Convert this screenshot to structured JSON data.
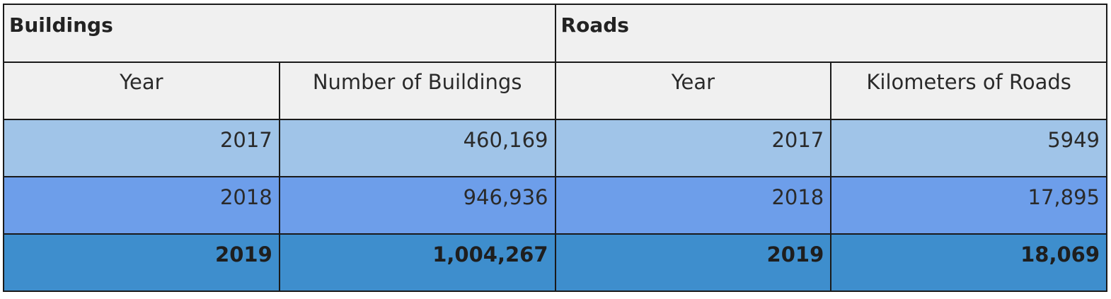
{
  "groups": {
    "buildings": "Buildings",
    "roads": "Roads"
  },
  "columns": {
    "buildings_year": "Year",
    "buildings_count": "Number of Buildings",
    "roads_year": "Year",
    "roads_km": "Kilometers of Roads"
  },
  "rows": [
    {
      "b_year": "2017",
      "buildings": "460,169",
      "r_year": "2017",
      "roads": "5949"
    },
    {
      "b_year": "2018",
      "buildings": "946,936",
      "r_year": "2018",
      "roads": "17,895"
    },
    {
      "b_year": "2019",
      "buildings": "1,004,267",
      "r_year": "2019",
      "roads": "18,069"
    }
  ],
  "colors": {
    "header_bg": "#f0f0f0",
    "row_2017": "#a0c4e8",
    "row_2018": "#6d9eea",
    "row_2019": "#3e8ecd"
  }
}
